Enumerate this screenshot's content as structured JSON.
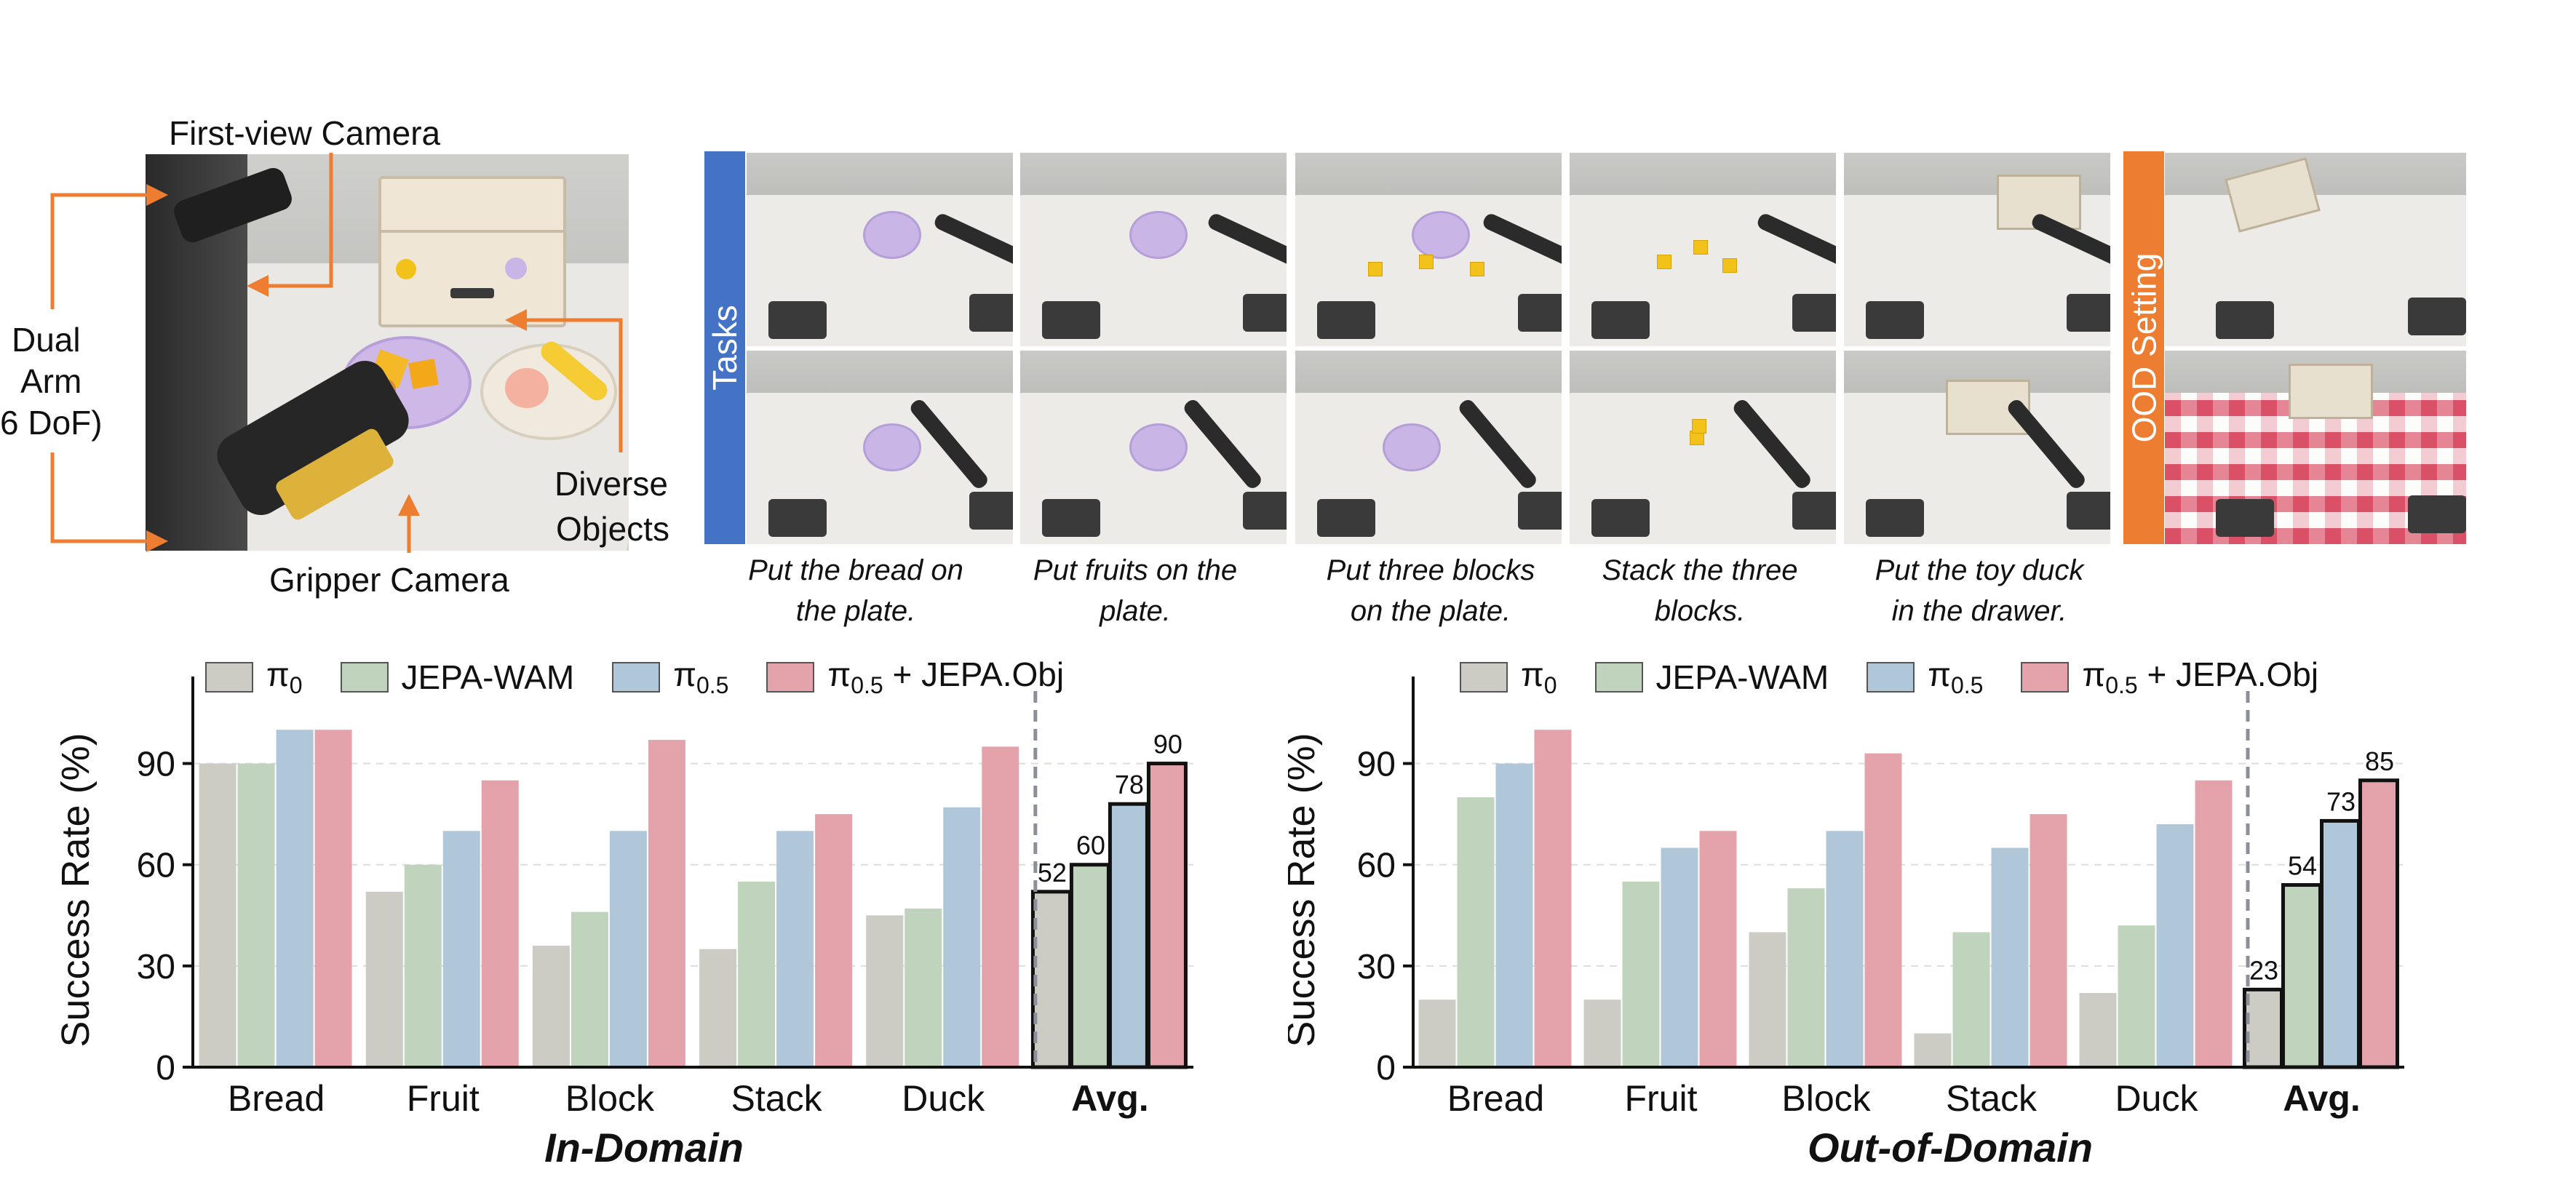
{
  "setup": {
    "labels": {
      "first_view": "First-view Camera",
      "dual_arm": [
        "Dual",
        "Arm",
        "6 DoF)"
      ],
      "diverse_objects": [
        "Diverse",
        "Objects"
      ],
      "gripper": "Gripper Camera"
    }
  },
  "panels": {
    "tasks_label": "Tasks",
    "ood_label": "OOD Setting",
    "captions": [
      [
        "Put the bread on",
        "the plate."
      ],
      [
        "Put fruits on the",
        "plate."
      ],
      [
        "Put three blocks",
        "on the plate."
      ],
      [
        "Stack the three",
        "blocks."
      ],
      [
        "Put the toy duck",
        "in the drawer."
      ]
    ]
  },
  "colors": {
    "tasks_band": "#4472c4",
    "ood_band": "#ed7d31",
    "arrow": "#ed7d31",
    "series": [
      "#ccccc4",
      "#bfd3bd",
      "#afc7d8",
      "#e4a2aa"
    ]
  },
  "legend": [
    {
      "main": "π",
      "sub": "0",
      "tail": ""
    },
    {
      "main": "JEPA-WAM",
      "sub": "",
      "tail": ""
    },
    {
      "main": "π",
      "sub": "0.5",
      "tail": ""
    },
    {
      "main": "π",
      "sub": "0.5",
      "tail": " + JEPA.Obj"
    }
  ],
  "chart_data": [
    {
      "type": "bar",
      "title": "In-Domain",
      "ylabel": "Success Rate (%)",
      "xlabel": "",
      "ylim": [
        0,
        105
      ],
      "yticks": [
        0,
        30,
        60,
        90
      ],
      "grid": true,
      "legend_position": "top",
      "categories": [
        "Bread",
        "Fruit",
        "Block",
        "Stack",
        "Duck",
        "Avg."
      ],
      "series": [
        {
          "name": "π0",
          "values": [
            90,
            52,
            36,
            35,
            45,
            52
          ]
        },
        {
          "name": "JEPA-WAM",
          "values": [
            90,
            60,
            46,
            55,
            47,
            60
          ]
        },
        {
          "name": "π0.5",
          "values": [
            100,
            70,
            70,
            70,
            77,
            78
          ]
        },
        {
          "name": "π0.5 + JEPA.Obj",
          "values": [
            100,
            85,
            97,
            75,
            95,
            90
          ]
        }
      ],
      "avg_labels": [
        "52",
        "60",
        "78",
        "90"
      ]
    },
    {
      "type": "bar",
      "title": "Out-of-Domain",
      "ylabel": "Success Rate (%)",
      "xlabel": "",
      "ylim": [
        0,
        105
      ],
      "yticks": [
        0,
        30,
        60,
        90
      ],
      "grid": true,
      "legend_position": "top",
      "categories": [
        "Bread",
        "Fruit",
        "Block",
        "Stack",
        "Duck",
        "Avg."
      ],
      "series": [
        {
          "name": "π0",
          "values": [
            20,
            20,
            40,
            10,
            22,
            23
          ]
        },
        {
          "name": "JEPA-WAM",
          "values": [
            80,
            55,
            53,
            40,
            42,
            54
          ]
        },
        {
          "name": "π0.5",
          "values": [
            90,
            65,
            70,
            65,
            72,
            73
          ]
        },
        {
          "name": "π0.5 + JEPA.Obj",
          "values": [
            100,
            70,
            93,
            75,
            85,
            85
          ]
        }
      ],
      "avg_labels": [
        "23",
        "54",
        "73",
        "85"
      ]
    }
  ]
}
